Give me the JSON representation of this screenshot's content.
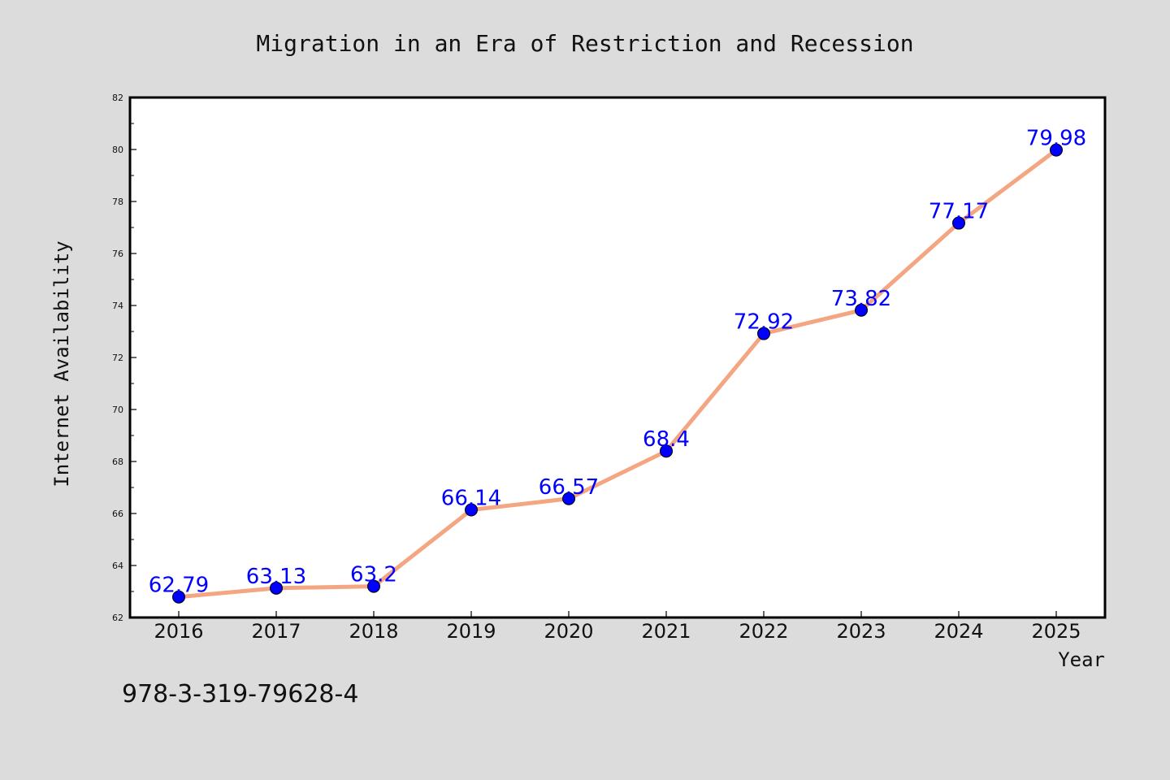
{
  "chart_data": {
    "type": "line",
    "title": "Migration in an Era of Restriction and Recession",
    "xlabel": "Year",
    "ylabel": "Internet Availability",
    "categories": [
      "2016",
      "2017",
      "2018",
      "2019",
      "2020",
      "2021",
      "2022",
      "2023",
      "2024",
      "2025"
    ],
    "series": [
      {
        "values": [
          62.79,
          63.13,
          63.2,
          66.14,
          66.57,
          68.4,
          72.92,
          73.82,
          77.17,
          79.98
        ],
        "line_color": "#f4a582",
        "marker_color": "#0000ff"
      }
    ],
    "data_labels": [
      "62.79",
      "63.13",
      "63.2",
      "66.14",
      "66.57",
      "68.4",
      "72.92",
      "73.82",
      "77.17",
      "79.98"
    ],
    "ylim": [
      62,
      82
    ],
    "yticks": [
      62,
      64,
      66,
      68,
      70,
      72,
      74,
      76,
      78,
      80,
      82
    ],
    "grid": false,
    "legend": "none"
  },
  "footnote": "978-3-319-79628-4",
  "colors": {
    "background": "#dcdcdc",
    "plot_background": "#ffffff",
    "line": "#f4a582",
    "marker": "#0000ff",
    "data_label": "#0000ff"
  }
}
